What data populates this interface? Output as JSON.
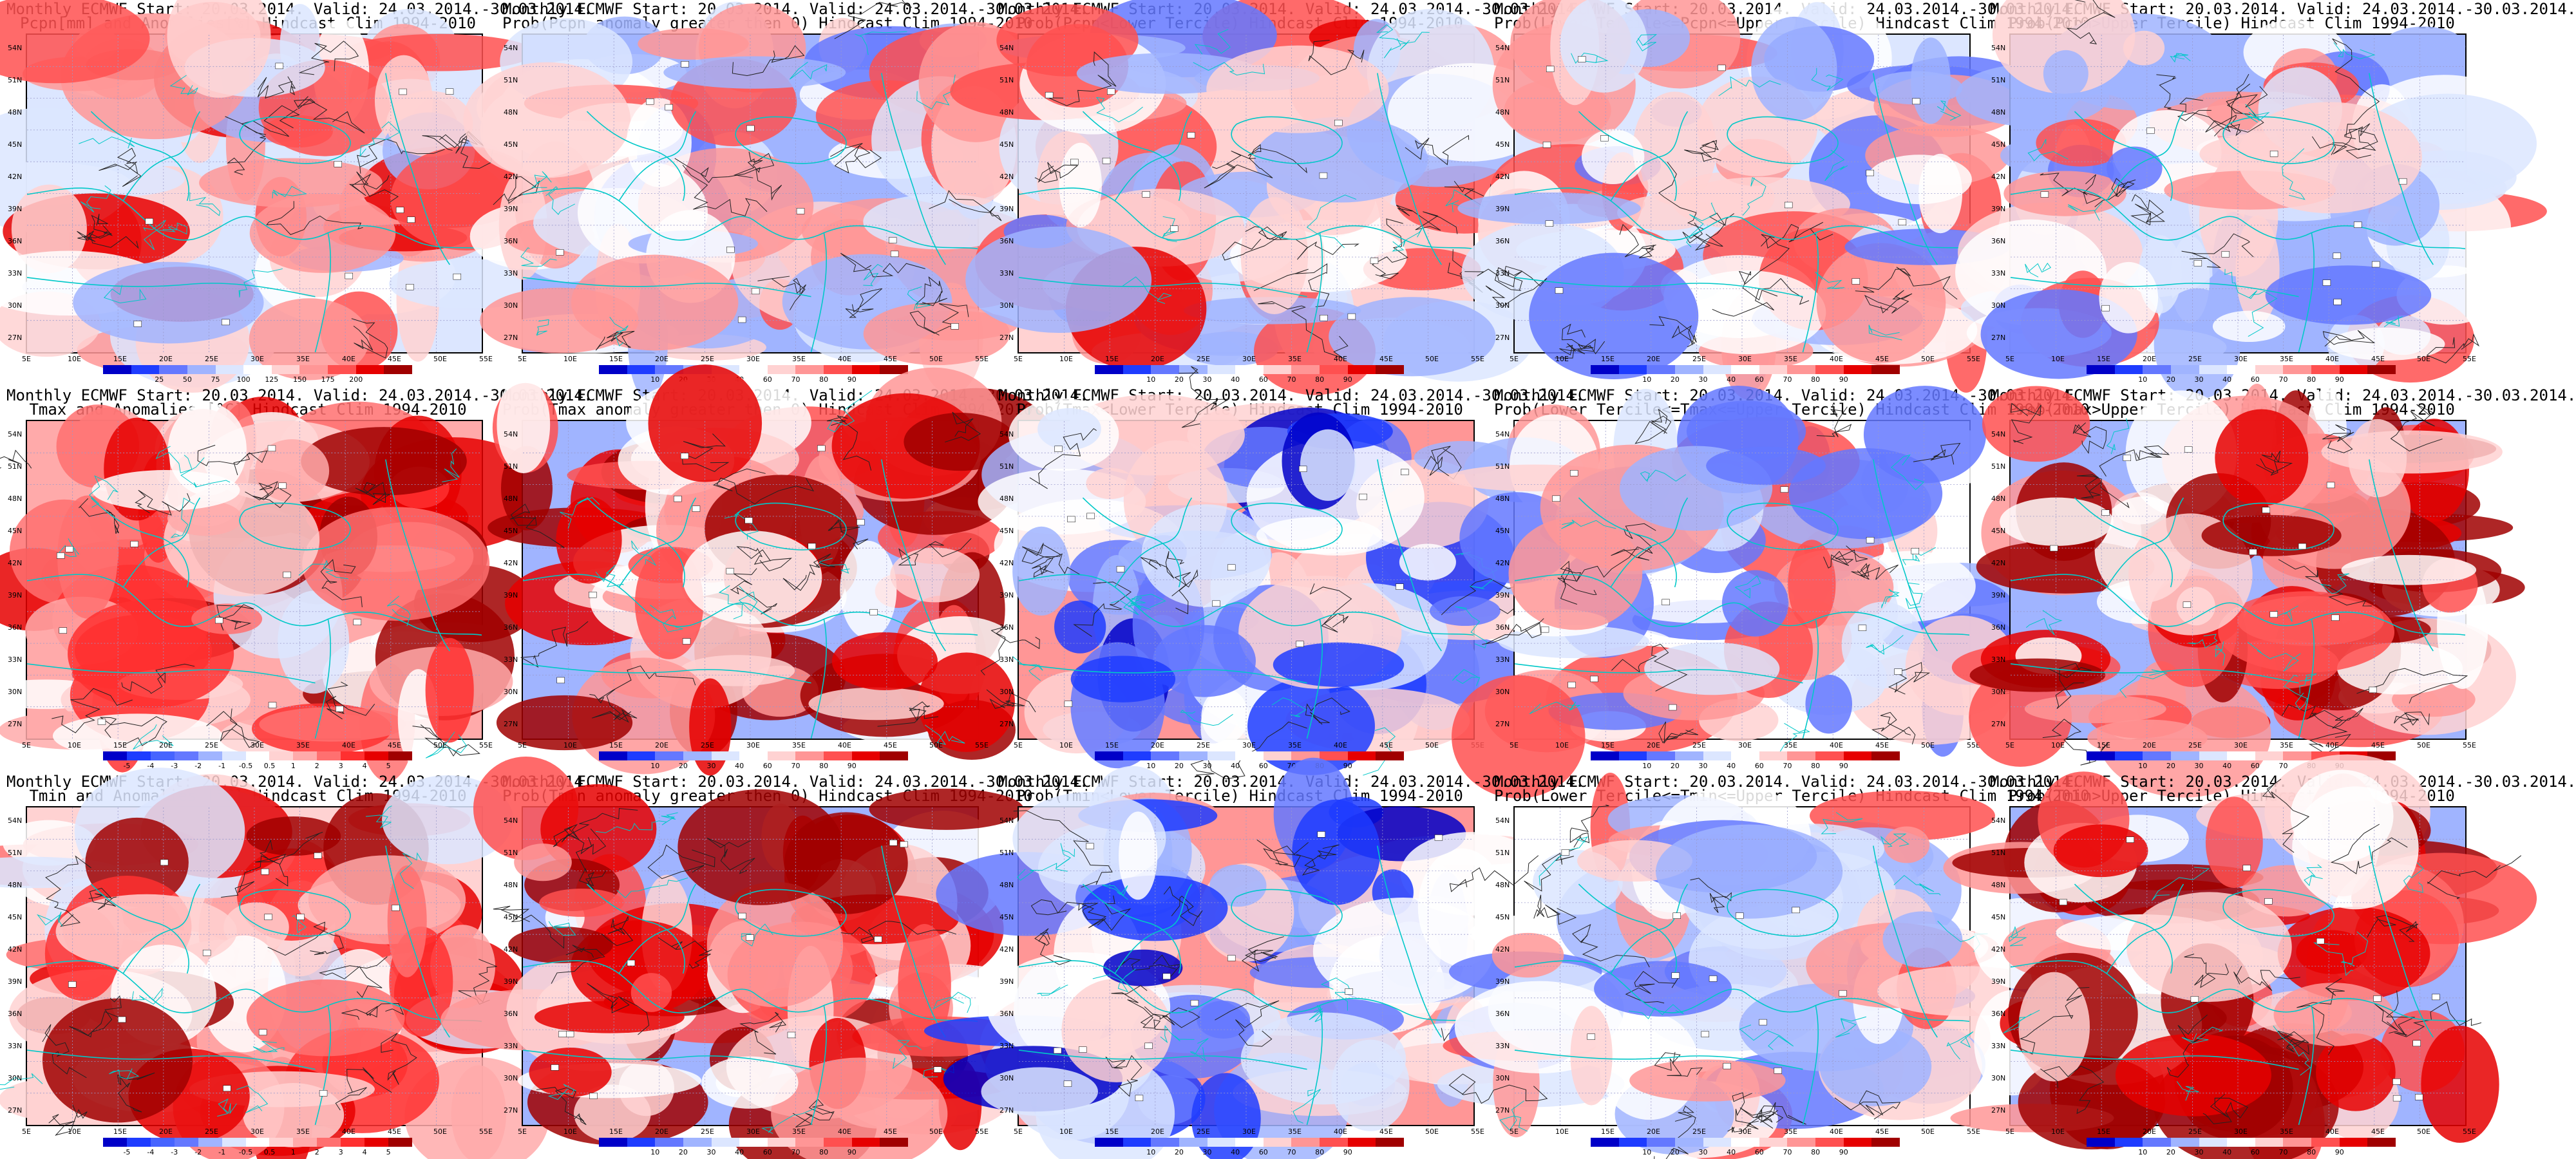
{
  "maps": [
    {
      "id": "p11",
      "row": 0,
      "col": 0,
      "title1": "Monthly ECMWF Start: 20.03.2014. Valid: 24.03.2014.-30.03.2014.",
      "title2": "Pcpn[mm] and Anomalies[%] Hindcast Clim 1994-2010",
      "scale": "pcp"
    },
    {
      "id": "p12",
      "row": 0,
      "col": 1,
      "title1": "Monthly ECMWF Start: 20.03.2014. Valid: 24.03.2014.-30.03.2014.",
      "title2": "Prob(Pcpn anomaly greater then 0) Hindcast Clim 1994-2010",
      "scale": "prob"
    },
    {
      "id": "p13",
      "row": 0,
      "col": 2,
      "title1": "Monthly ECMWF Start: 20.03.2014. Valid: 24.03.2014.-30.03.2014.",
      "title2": "Prob(Pcpn<Lower Tercile) Hindcast Clim 1994-2010",
      "scale": "prob"
    },
    {
      "id": "p14",
      "row": 0,
      "col": 3,
      "title1": "Monthly ECMWF Start: 20.03.2014. Valid: 24.03.2014.-30.03.2014.",
      "title2": "Prob(Lower Tercile<=Pcpn<=Upper Tercile) Hindcast Clim 1994-2010",
      "scale": "prob"
    },
    {
      "id": "p15",
      "row": 0,
      "col": 4,
      "title1": "Monthly ECMWF Start: 20.03.2014. Valid: 24.03.2014.-30.03.2014.",
      "title2": "Prob(Pcpn>Upper Tercile) Hindcast Clim 1994-2010",
      "scale": "prob"
    },
    {
      "id": "p21",
      "row": 1,
      "col": 0,
      "title1": "Monthly ECMWF Start: 20.03.2014. Valid: 24.03.2014.-30.03.2014.",
      "title2": "Tmax and Anomalies [°C] Hindcast Clim 1994-2010",
      "scale": "temp"
    },
    {
      "id": "p22",
      "row": 1,
      "col": 1,
      "title1": "Monthly ECMWF Start: 20.03.2014. Valid: 24.03.2014.-30.03.2014.",
      "title2": "Prob(Tmax anomaly greater then 0) Hindcast Clim 1994-2010",
      "scale": "prob"
    },
    {
      "id": "p23",
      "row": 1,
      "col": 2,
      "title1": "Monthly ECMWF Start: 20.03.2014. Valid: 24.03.2014.-30.03.2014.",
      "title2": "Prob(Tmax<Lower Tercile) Hindcast Clim 1994-2010",
      "scale": "prob"
    },
    {
      "id": "p24",
      "row": 1,
      "col": 3,
      "title1": "Monthly ECMWF Start: 20.03.2014. Valid: 24.03.2014.-30.03.2014.",
      "title2": "Prob(Lower Tercile<=Tmax<=Upper Tercile) Hindcast Clim 1994-2010",
      "scale": "prob"
    },
    {
      "id": "p25",
      "row": 1,
      "col": 4,
      "title1": "Monthly ECMWF Start: 20.03.2014. Valid: 24.03.2014.-30.03.2014.",
      "title2": "Prob(Tmax>Upper Tercile) Hindcast Clim 1994-2010",
      "scale": "prob"
    },
    {
      "id": "p31",
      "row": 2,
      "col": 0,
      "title1": "Monthly ECMWF Start: 20.03.2014. Valid: 24.03.2014.-30.03.2014.",
      "title2": "Tmin and Anomalies [°C] Hindcast Clim 1994-2010",
      "scale": "temp"
    },
    {
      "id": "p32",
      "row": 2,
      "col": 1,
      "title1": "Monthly ECMWF Start: 20.03.2014. Valid: 24.03.2014.-30.03.2014.",
      "title2": "Prob(Tmin anomaly greater then 0) Hindcast Clim 1994-2010",
      "scale": "prob"
    },
    {
      "id": "p33",
      "row": 2,
      "col": 2,
      "title1": "Monthly ECMWF Start: 20.03.2014. Valid: 24.03.2014.-30.03.2014.",
      "title2": "Prob(Tmin<Lower Tercile) Hindcast Clim 1994-2010",
      "scale": "prob"
    },
    {
      "id": "p34",
      "row": 2,
      "col": 3,
      "title1": "Monthly ECMWF Start: 20.03.2014. Valid: 24.03.2014.-30.03.2014.",
      "title2": "Prob(Lower Tercile<=Tmin<=Upper Tercile) Hindcast Clim 1994-2010",
      "scale": "prob"
    },
    {
      "id": "p35",
      "row": 2,
      "col": 4,
      "title1": "Monthly ECMWF Start: 20.03.2014. Valid: 24.03.2014.-30.03.2014.",
      "title2": "Prob(Tmin>Upper Tercile) Hindcast Clim 1994-2010",
      "scale": "prob"
    }
  ],
  "lat_labels": [
    "54N",
    "51N",
    "48N",
    "45N",
    "42N",
    "39N",
    "36N",
    "33N",
    "30N",
    "27N"
  ],
  "lon_labels": [
    "5E",
    "10E",
    "15E",
    "20E",
    "25E",
    "30E",
    "35E",
    "40E",
    "45E",
    "50E",
    "55E"
  ],
  "scales": {
    "prob": {
      "ticks": [
        "10",
        "20",
        "30",
        "40",
        "60",
        "70",
        "80",
        "90"
      ],
      "colors": [
        "#0000c8",
        "#1e3cff",
        "#6478ff",
        "#a0b4ff",
        "#dce6ff",
        "#ffffff",
        "#ffd2d2",
        "#ff9696",
        "#ff5050",
        "#e60000",
        "#a00000"
      ]
    },
    "pcp": {
      "ticks": [
        "25",
        "50",
        "75",
        "100",
        "125",
        "150",
        "175",
        "200"
      ],
      "colors": [
        "#0000c8",
        "#1e3cff",
        "#6478ff",
        "#a0b4ff",
        "#dce6ff",
        "#ffffff",
        "#ffd2d2",
        "#ff9696",
        "#ff5050",
        "#e60000",
        "#a00000"
      ]
    },
    "temp": {
      "ticks": [
        "-5",
        "-4",
        "-3",
        "-2",
        "-1",
        "-0.5",
        "0.5",
        "1",
        "2",
        "3",
        "4",
        "5"
      ],
      "colors": [
        "#0000c8",
        "#1e3cff",
        "#4664ff",
        "#6478ff",
        "#a0b4ff",
        "#dce6ff",
        "#ffffff",
        "#ffd2d2",
        "#ffaaaa",
        "#ff7070",
        "#ff3030",
        "#e60000",
        "#a00000"
      ]
    }
  },
  "palette": {
    "coast": "#00c8c8",
    "contour": "#222222",
    "grid": "#9999cc"
  }
}
